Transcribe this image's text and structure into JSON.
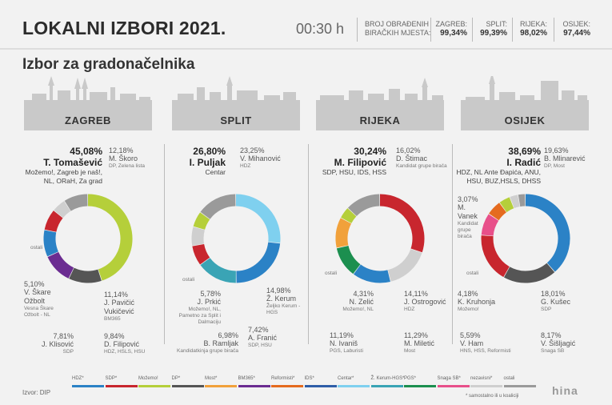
{
  "header": {
    "title": "LOKALNI IZBORI 2021.",
    "time": "00:30 h",
    "processed_label_1": "BROJ OBRAĐENIH",
    "processed_label_2": "BIRAČKIH MJESTA:",
    "counts": [
      {
        "city": "ZAGREB:",
        "value": "99,34%"
      },
      {
        "city": "SPLIT:",
        "value": "99,39%"
      },
      {
        "city": "RIJEKA:",
        "value": "98,02%"
      },
      {
        "city": "OSIJEK:",
        "value": "97,44%"
      }
    ]
  },
  "subtitle": "Izbor za gradonačelnika",
  "legend": [
    {
      "label": "HDZ*",
      "color": "#2b82c6"
    },
    {
      "label": "SDP*",
      "color": "#c8262e"
    },
    {
      "label": "Možemo!",
      "color": "#b5cf3a"
    },
    {
      "label": "DP*",
      "color": "#555555"
    },
    {
      "label": "Most*",
      "color": "#f1a13b"
    },
    {
      "label": "BM365*",
      "color": "#6b2c91"
    },
    {
      "label": "Reformisti*",
      "color": "#e56b1f"
    },
    {
      "label": "IDS*",
      "color": "#2f5ea8"
    },
    {
      "label": "Centar*",
      "color": "#7fd0ef"
    },
    {
      "label": "Ž. Kerum-HGS*",
      "color": "#3aa4b5"
    },
    {
      "label": "PGS*",
      "color": "#1c8f4f"
    },
    {
      "label": "Snaga SB*",
      "color": "#e8508a"
    },
    {
      "label": "nezavisni*",
      "color": "#cfcfcf"
    },
    {
      "label": "ostali",
      "color": "#9a9a9a"
    }
  ],
  "note": "* samostalno ili u koaliciji",
  "source": "Izvor: DIP",
  "logo": "hina",
  "chart_data": [
    {
      "type": "pie",
      "title": "ZAGREB",
      "series": [
        {
          "name": "T. Tomašević",
          "pct": "45,08%",
          "party": "Možemo!, Zagreb je naš!, NL, ORaH, Za grad",
          "value": 45.08,
          "color": "#b5cf3a"
        },
        {
          "name": "M. Škoro",
          "pct": "12,18%",
          "party": "DP, Zelena lista",
          "value": 12.18,
          "color": "#555555"
        },
        {
          "name": "J. Pavičić Vukičević",
          "pct": "11,14%",
          "party": "BM365",
          "value": 11.14,
          "color": "#6b2c91"
        },
        {
          "name": "D. Filipović",
          "pct": "9,84%",
          "party": "HDZ, HSLS, HSU",
          "value": 9.84,
          "color": "#2b82c6"
        },
        {
          "name": "J. Klisović",
          "pct": "7,81%",
          "party": "SDP",
          "value": 7.81,
          "color": "#c8262e"
        },
        {
          "name": "V. Škare Ožbolt",
          "pct": "5,10%",
          "party": "Vesna Škare Ožbolt - NL",
          "value": 5.1,
          "color": "#cfcfcf"
        },
        {
          "name": "ostali",
          "pct": "",
          "party": "",
          "value": 8.85,
          "color": "#9a9a9a"
        }
      ]
    },
    {
      "type": "pie",
      "title": "SPLIT",
      "series": [
        {
          "name": "I. Puljak",
          "pct": "26,80%",
          "party": "Centar",
          "value": 26.8,
          "color": "#7fd0ef"
        },
        {
          "name": "V. Mihanović",
          "pct": "23,25%",
          "party": "HDZ",
          "value": 23.25,
          "color": "#2b82c6"
        },
        {
          "name": "Ž. Kerum",
          "pct": "14,98%",
          "party": "Željko Kerum - HGS",
          "value": 14.98,
          "color": "#3aa4b5"
        },
        {
          "name": "A. Franić",
          "pct": "7,42%",
          "party": "SDP, HSU",
          "value": 7.42,
          "color": "#c8262e"
        },
        {
          "name": "B. Ramljak",
          "pct": "6,98%",
          "party": "Kandidatkinja grupe birača",
          "value": 6.98,
          "color": "#cfcfcf"
        },
        {
          "name": "J. Prkić",
          "pct": "5,78%",
          "party": "Možemo!, NL, Pametno za Split i Dalmaciju",
          "value": 5.78,
          "color": "#b5cf3a"
        },
        {
          "name": "ostali",
          "pct": "",
          "party": "",
          "value": 14.79,
          "color": "#9a9a9a"
        }
      ]
    },
    {
      "type": "pie",
      "title": "RIJEKA",
      "series": [
        {
          "name": "M. Filipović",
          "pct": "30,24%",
          "party": "SDP, HSU, IDS, HSS",
          "value": 30.24,
          "color": "#c8262e"
        },
        {
          "name": "D. Štimac",
          "pct": "16,02%",
          "party": "Kandidat grupe birača",
          "value": 16.02,
          "color": "#cfcfcf"
        },
        {
          "name": "J. Ostrogović",
          "pct": "14,11%",
          "party": "HDZ",
          "value": 14.11,
          "color": "#2b82c6"
        },
        {
          "name": "M. Miletić",
          "pct": "11,29%",
          "party": "Most",
          "value": 11.29,
          "color": "#1c8f4f"
        },
        {
          "name": "N. Ivaniš",
          "pct": "11,19%",
          "party": "PGS, Laburisti",
          "value": 11.19,
          "color": "#f1a13b"
        },
        {
          "name": "N. Zelić",
          "pct": "4,31%",
          "party": "Možemo!, NL",
          "value": 4.31,
          "color": "#b5cf3a"
        },
        {
          "name": "ostali",
          "pct": "",
          "party": "",
          "value": 12.84,
          "color": "#9a9a9a"
        }
      ]
    },
    {
      "type": "pie",
      "title": "OSIJEK",
      "series": [
        {
          "name": "I. Radić",
          "pct": "38,69%",
          "party": "HDZ, NL Ante Đapića, ANU, HSU, BUZ,HSLS, DHSS",
          "value": 38.69,
          "color": "#2b82c6"
        },
        {
          "name": "B. Mlinarević",
          "pct": "19,63%",
          "party": "DP, Most",
          "value": 19.63,
          "color": "#555555"
        },
        {
          "name": "G. Kušec",
          "pct": "18,01%",
          "party": "SDP",
          "value": 18.01,
          "color": "#c8262e"
        },
        {
          "name": "V. Šišljagić",
          "pct": "8,17%",
          "party": "Snaga SB",
          "value": 8.17,
          "color": "#e8508a"
        },
        {
          "name": "V. Ham",
          "pct": "5,59%",
          "party": "HNS, HSS, Reformisti",
          "value": 5.59,
          "color": "#e56b1f"
        },
        {
          "name": "K. Kruhonja",
          "pct": "4,18%",
          "party": "Možemo!",
          "value": 4.18,
          "color": "#b5cf3a"
        },
        {
          "name": "M. Vanek",
          "pct": "3,07%",
          "party": "Kandidat grupe birača",
          "value": 3.07,
          "color": "#cfcfcf"
        },
        {
          "name": "ostali",
          "pct": "",
          "party": "",
          "value": 2.66,
          "color": "#9a9a9a"
        }
      ]
    }
  ]
}
